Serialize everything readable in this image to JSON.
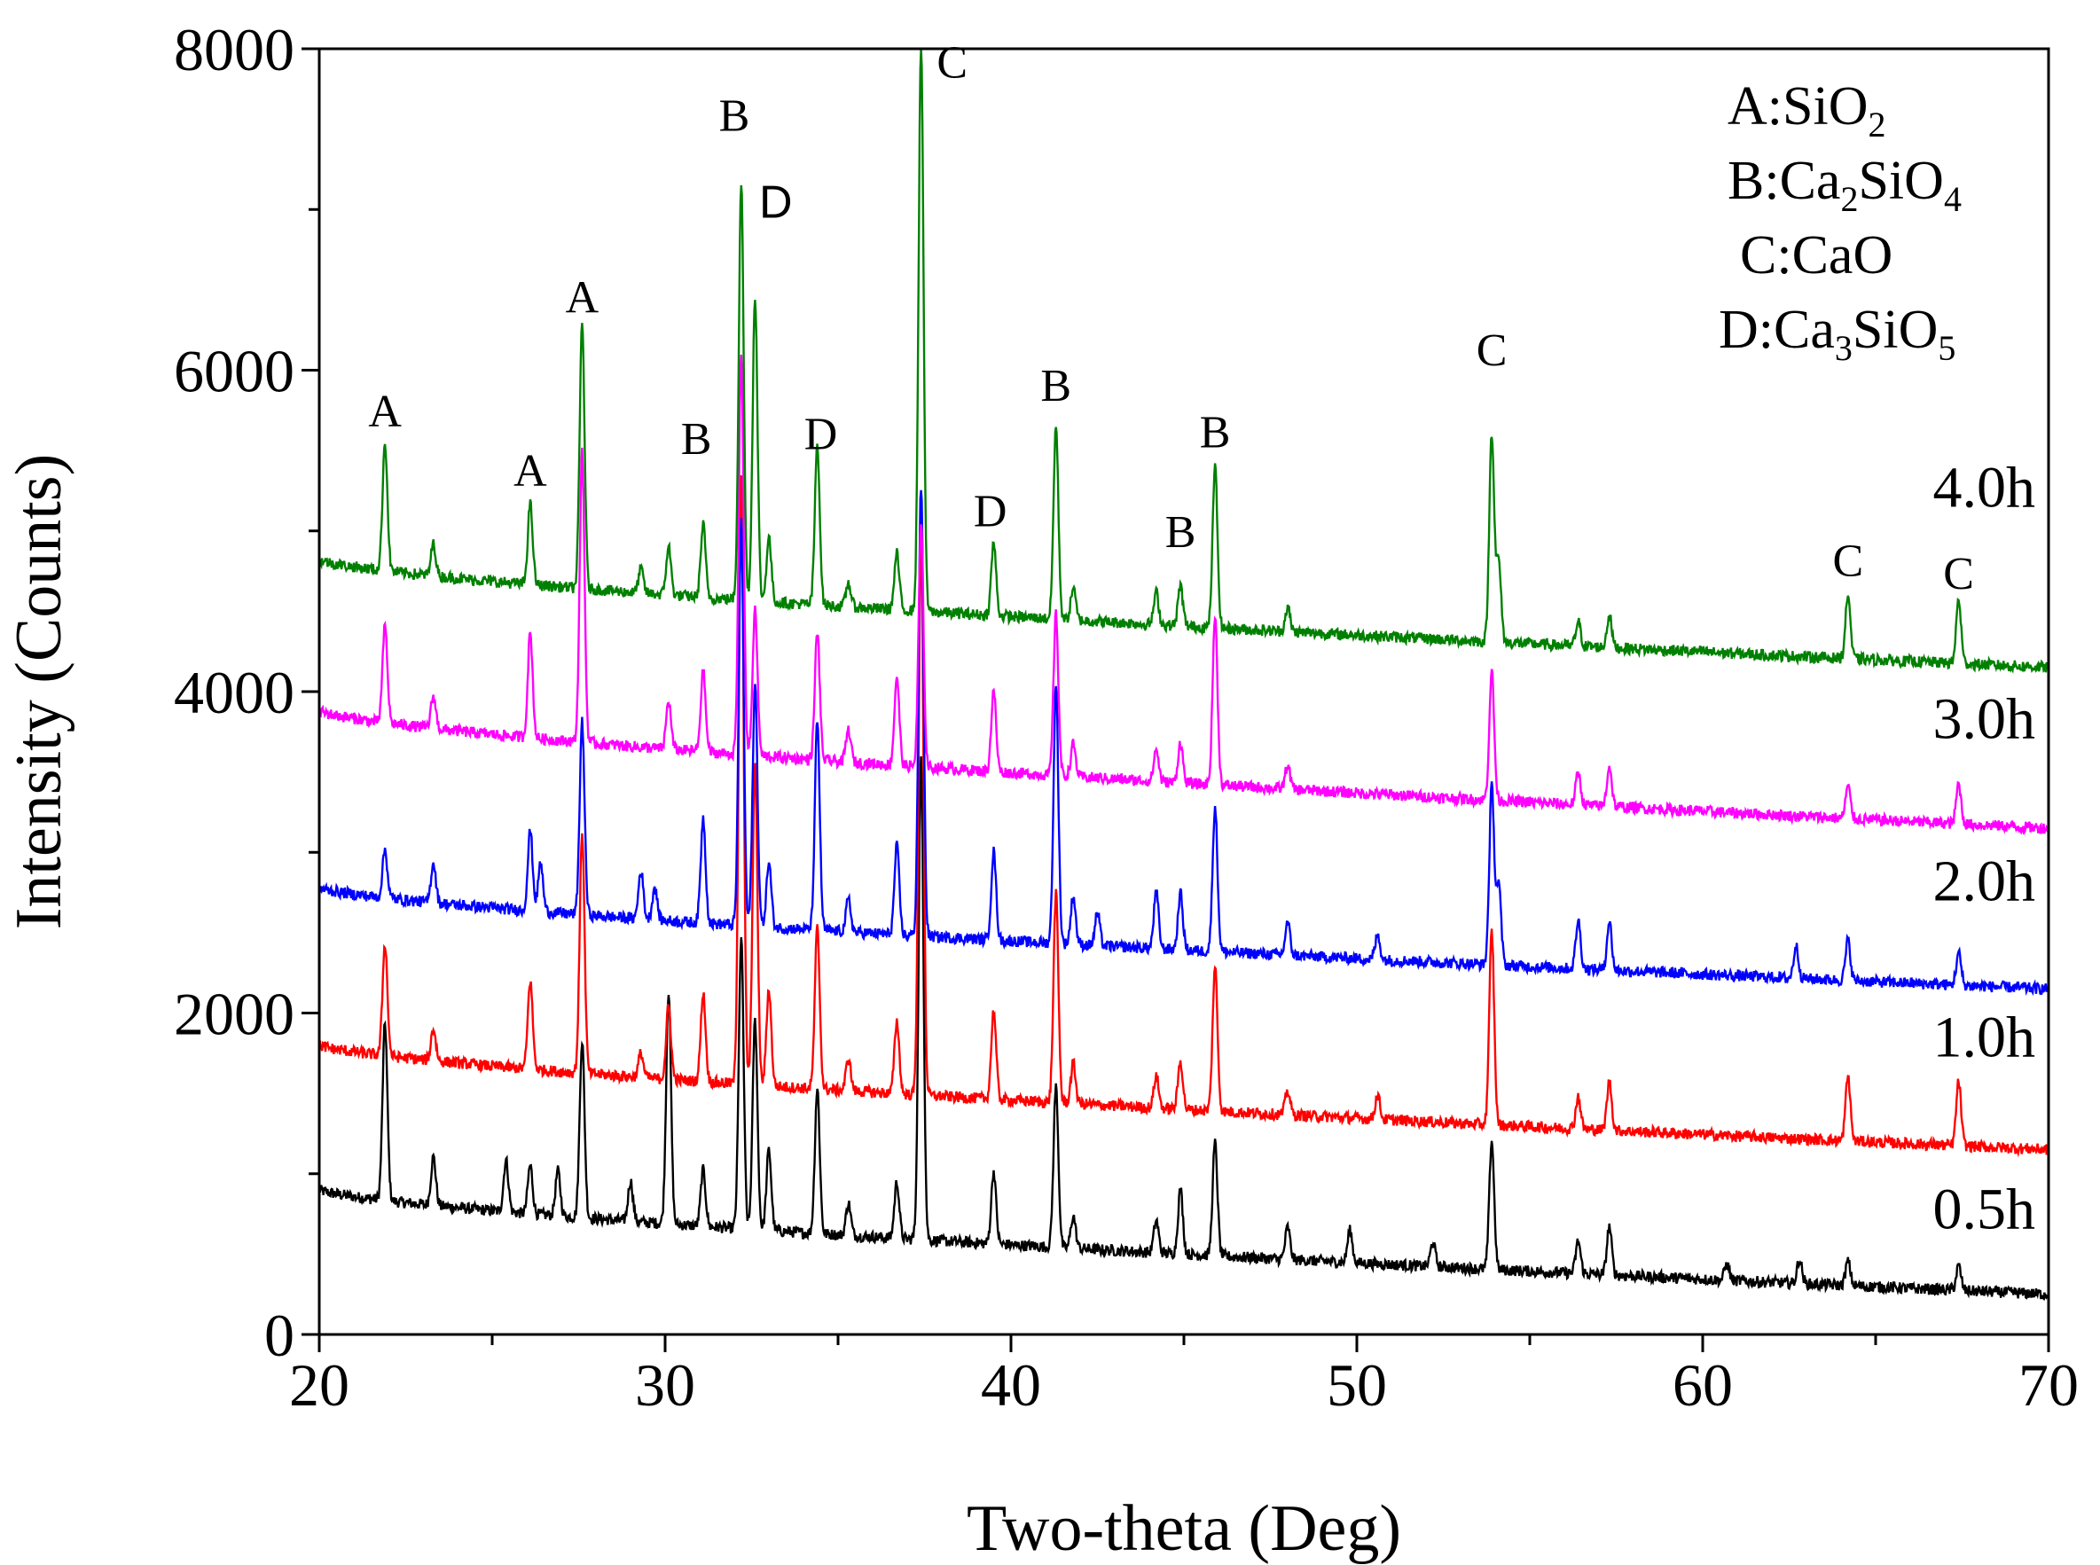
{
  "chart_data": {
    "type": "line",
    "title": "",
    "xlabel": "Two-theta (Deg)",
    "ylabel": "Intensity (Counts)",
    "xlim": [
      20,
      70
    ],
    "ylim": [
      0,
      8000
    ],
    "x_ticks": [
      20,
      30,
      40,
      50,
      60,
      70
    ],
    "y_ticks": [
      0,
      2000,
      4000,
      6000,
      8000
    ],
    "legend_position": "top-right",
    "legend": [
      {
        "key": "A",
        "base": "A:SiO",
        "sub": "2",
        "tail": "",
        "sub2": ""
      },
      {
        "key": "B",
        "base": "B:Ca",
        "sub": "2",
        "tail": "SiO",
        "sub2": "4"
      },
      {
        "key": "C",
        "base": "C:CaO",
        "sub": "",
        "tail": "",
        "sub2": ""
      },
      {
        "key": "D",
        "base": "D:Ca",
        "sub": "3",
        "tail": "SiO",
        "sub2": "5"
      }
    ],
    "series": [
      {
        "name": "0.5h",
        "color": "#000000",
        "baseline_start": 900,
        "baseline_end": 250,
        "peaks": [
          [
            21.9,
            1100
          ],
          [
            23.3,
            300
          ],
          [
            25.4,
            320
          ],
          [
            26.1,
            300
          ],
          [
            26.9,
            280
          ],
          [
            27.6,
            1100
          ],
          [
            29.0,
            250
          ],
          [
            30.1,
            1450
          ],
          [
            31.1,
            350
          ],
          [
            32.2,
            1800
          ],
          [
            32.6,
            1300
          ],
          [
            33.0,
            500
          ],
          [
            34.4,
            900
          ],
          [
            35.3,
            200
          ],
          [
            36.7,
            350
          ],
          [
            37.4,
            3000
          ],
          [
            39.5,
            450
          ],
          [
            41.3,
            1000
          ],
          [
            41.8,
            200
          ],
          [
            44.2,
            200
          ],
          [
            44.9,
            400
          ],
          [
            45.9,
            700
          ],
          [
            48.0,
            200
          ],
          [
            49.8,
            200
          ],
          [
            52.2,
            150
          ],
          [
            53.9,
            800
          ],
          [
            56.4,
            200
          ],
          [
            57.3,
            300
          ],
          [
            60.7,
            100
          ],
          [
            62.8,
            150
          ],
          [
            64.2,
            150
          ],
          [
            67.4,
            150
          ]
        ]
      },
      {
        "name": "1.0h",
        "color": "#ff0000",
        "baseline_start": 1800,
        "baseline_end": 1150,
        "peaks": [
          [
            21.9,
            700
          ],
          [
            23.3,
            200
          ],
          [
            26.1,
            550
          ],
          [
            27.6,
            1500
          ],
          [
            29.3,
            150
          ],
          [
            30.1,
            450
          ],
          [
            31.1,
            550
          ],
          [
            32.2,
            3800
          ],
          [
            32.6,
            2000
          ],
          [
            33.0,
            600
          ],
          [
            34.4,
            1000
          ],
          [
            35.3,
            200
          ],
          [
            36.7,
            450
          ],
          [
            37.4,
            3500
          ],
          [
            39.5,
            550
          ],
          [
            41.3,
            1300
          ],
          [
            41.8,
            250
          ],
          [
            44.2,
            200
          ],
          [
            44.9,
            300
          ],
          [
            45.9,
            900
          ],
          [
            48.0,
            150
          ],
          [
            50.6,
            150
          ],
          [
            53.9,
            1200
          ],
          [
            56.4,
            200
          ],
          [
            57.3,
            300
          ],
          [
            64.2,
            400
          ],
          [
            67.4,
            400
          ]
        ]
      },
      {
        "name": "2.0h",
        "color": "#0000ff",
        "baseline_start": 2780,
        "baseline_end": 2150,
        "peaks": [
          [
            21.9,
            300
          ],
          [
            23.3,
            250
          ],
          [
            26.1,
            500
          ],
          [
            26.4,
            300
          ],
          [
            27.6,
            1200
          ],
          [
            29.3,
            300
          ],
          [
            29.7,
            200
          ],
          [
            31.1,
            650
          ],
          [
            32.2,
            2500
          ],
          [
            32.6,
            1500
          ],
          [
            33.0,
            400
          ],
          [
            34.4,
            1300
          ],
          [
            35.3,
            200
          ],
          [
            36.7,
            550
          ],
          [
            37.4,
            2800
          ],
          [
            39.5,
            550
          ],
          [
            41.3,
            1600
          ],
          [
            41.8,
            300
          ],
          [
            42.5,
            200
          ],
          [
            44.2,
            350
          ],
          [
            44.9,
            350
          ],
          [
            45.9,
            900
          ],
          [
            48.0,
            200
          ],
          [
            50.6,
            150
          ],
          [
            53.9,
            1100
          ],
          [
            54.1,
            500
          ],
          [
            56.4,
            300
          ],
          [
            57.3,
            300
          ],
          [
            62.7,
            200
          ],
          [
            64.2,
            250
          ],
          [
            67.4,
            200
          ]
        ]
      },
      {
        "name": "3.0h",
        "color": "#ff00ff",
        "baseline_start": 3880,
        "baseline_end": 3150,
        "peaks": [
          [
            21.9,
            600
          ],
          [
            23.3,
            200
          ],
          [
            26.1,
            650
          ],
          [
            27.6,
            1800
          ],
          [
            30.1,
            300
          ],
          [
            31.1,
            500
          ],
          [
            32.2,
            2500
          ],
          [
            32.6,
            900
          ],
          [
            34.4,
            800
          ],
          [
            35.3,
            200
          ],
          [
            36.7,
            550
          ],
          [
            37.4,
            1500
          ],
          [
            39.5,
            500
          ],
          [
            41.3,
            1000
          ],
          [
            41.8,
            200
          ],
          [
            44.2,
            200
          ],
          [
            44.9,
            250
          ],
          [
            45.9,
            1050
          ],
          [
            48.0,
            150
          ],
          [
            53.9,
            800
          ],
          [
            56.4,
            200
          ],
          [
            57.3,
            250
          ],
          [
            64.2,
            200
          ],
          [
            67.4,
            250
          ]
        ]
      },
      {
        "name": "4.0h",
        "color": "#008000",
        "baseline_start": 4820,
        "baseline_end": 4150,
        "peaks": [
          [
            21.9,
            800
          ],
          [
            23.3,
            200
          ],
          [
            26.1,
            500
          ],
          [
            27.6,
            1650
          ],
          [
            29.3,
            150
          ],
          [
            30.1,
            300
          ],
          [
            31.1,
            450
          ],
          [
            32.2,
            2600
          ],
          [
            32.6,
            1900
          ],
          [
            33.0,
            400
          ],
          [
            34.4,
            1000
          ],
          [
            35.3,
            150
          ],
          [
            36.7,
            350
          ],
          [
            37.4,
            3550
          ],
          [
            39.5,
            450
          ],
          [
            41.3,
            1200
          ],
          [
            41.8,
            200
          ],
          [
            44.2,
            200
          ],
          [
            44.9,
            250
          ],
          [
            45.9,
            1000
          ],
          [
            48.0,
            150
          ],
          [
            53.9,
            1300
          ],
          [
            54.1,
            500
          ],
          [
            56.4,
            150
          ],
          [
            57.3,
            200
          ],
          [
            64.2,
            400
          ],
          [
            67.4,
            400
          ]
        ]
      }
    ],
    "peak_annotations": [
      {
        "label": "A",
        "x": 21.9,
        "y": 5650
      },
      {
        "label": "A",
        "x": 26.1,
        "y": 5280
      },
      {
        "label": "A",
        "x": 27.6,
        "y": 6360
      },
      {
        "label": "B",
        "x": 30.9,
        "y": 5480
      },
      {
        "label": "B",
        "x": 32.0,
        "y": 7490
      },
      {
        "label": "D",
        "x": 33.2,
        "y": 6950,
        "style": "sans"
      },
      {
        "label": "D",
        "x": 34.5,
        "y": 5510
      },
      {
        "label": "C",
        "x": 38.3,
        "y": 7820
      },
      {
        "label": "D",
        "x": 39.4,
        "y": 5030
      },
      {
        "label": "B",
        "x": 41.3,
        "y": 5810
      },
      {
        "label": "B",
        "x": 44.9,
        "y": 4900
      },
      {
        "label": "B",
        "x": 45.9,
        "y": 5520
      },
      {
        "label": "C",
        "x": 53.9,
        "y": 6030
      },
      {
        "label": "C",
        "x": 64.2,
        "y": 4720
      },
      {
        "label": "C",
        "x": 67.4,
        "y": 4640
      }
    ],
    "series_labels": [
      {
        "text": "4.0h",
        "y": 5150
      },
      {
        "text": "3.0h",
        "y": 3710
      },
      {
        "text": "2.0h",
        "y": 2700
      },
      {
        "text": "1.0h",
        "y": 1730
      },
      {
        "text": "0.5h",
        "y": 660
      }
    ]
  }
}
